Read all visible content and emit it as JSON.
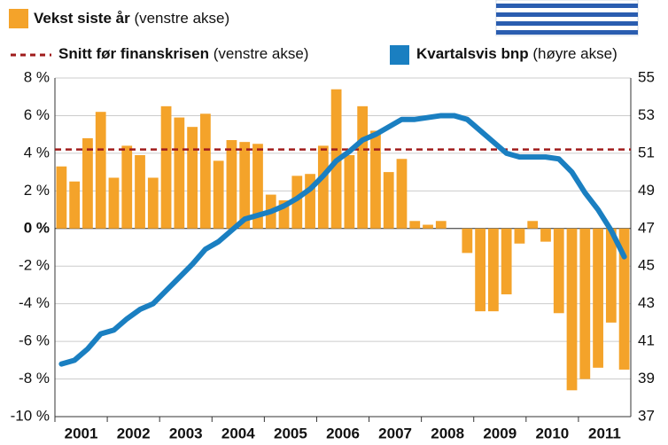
{
  "chart_data": {
    "type": "bar",
    "categories": [
      "2001",
      null,
      null,
      null,
      "2002",
      null,
      null,
      null,
      "2003",
      null,
      null,
      null,
      "2004",
      null,
      null,
      null,
      "2005",
      null,
      null,
      null,
      "2006",
      null,
      null,
      null,
      "2007",
      null,
      null,
      null,
      "2008",
      null,
      null,
      null,
      "2009",
      null,
      null,
      null,
      "2010",
      null,
      null,
      null,
      "2011",
      null,
      null,
      null
    ],
    "series": [
      {
        "name": "Vekst siste år",
        "axis_note": "(venstre akse)",
        "type": "bar",
        "color": "#f4a32a",
        "values": [
          3.3,
          2.5,
          4.8,
          6.2,
          2.7,
          4.4,
          3.9,
          2.7,
          6.5,
          5.9,
          5.4,
          6.1,
          3.6,
          4.7,
          4.6,
          4.5,
          1.8,
          1.5,
          2.8,
          2.9,
          4.4,
          7.4,
          3.9,
          6.5,
          5.2,
          3.0,
          3.7,
          0.4,
          0.2,
          0.4,
          0.0,
          -1.3,
          -4.4,
          -4.4,
          -3.5,
          -0.8,
          0.4,
          -0.7,
          -4.5,
          -8.6,
          -8.0,
          -7.4,
          -5.0,
          -7.5
        ]
      },
      {
        "name": "Kvartalsvis bnp",
        "axis_note": "(høyre akse)",
        "type": "line",
        "axis": "y2",
        "color": "#1a7fc1",
        "values": [
          39.8,
          40.0,
          40.6,
          41.4,
          41.6,
          42.2,
          42.7,
          43.0,
          43.7,
          44.4,
          45.1,
          45.9,
          46.3,
          46.9,
          47.5,
          47.7,
          47.9,
          48.2,
          48.6,
          49.1,
          49.8,
          50.6,
          51.1,
          51.7,
          52.0,
          52.4,
          52.8,
          52.8,
          52.9,
          53.0,
          53.0,
          52.8,
          52.2,
          51.6,
          51.0,
          50.8,
          50.8,
          50.8,
          50.7,
          50.0,
          48.9,
          48.0,
          46.9,
          45.5
        ]
      }
    ],
    "reference_line": {
      "name": "Snitt før finanskrisen",
      "axis_note": "(venstre akse)",
      "value": 4.2,
      "color": "#a01c1c"
    },
    "ylim": [
      -10,
      8
    ],
    "yticks": [
      {
        "value": -10,
        "label": "-10 %"
      },
      {
        "value": -8,
        "label": "-8 %"
      },
      {
        "value": -6,
        "label": "-6 %"
      },
      {
        "value": -4,
        "label": "-4 %"
      },
      {
        "value": -2,
        "label": "-2 %"
      },
      {
        "value": 0,
        "label": "0 %"
      },
      {
        "value": 2,
        "label": "2 %"
      },
      {
        "value": 4,
        "label": "4 %"
      },
      {
        "value": 6,
        "label": "6 %"
      },
      {
        "value": 8,
        "label": "8 %"
      }
    ],
    "y2lim": [
      37,
      55
    ],
    "y2ticks": [
      37,
      39,
      41,
      43,
      45,
      47,
      49,
      51,
      53,
      55
    ],
    "grid": true
  }
}
